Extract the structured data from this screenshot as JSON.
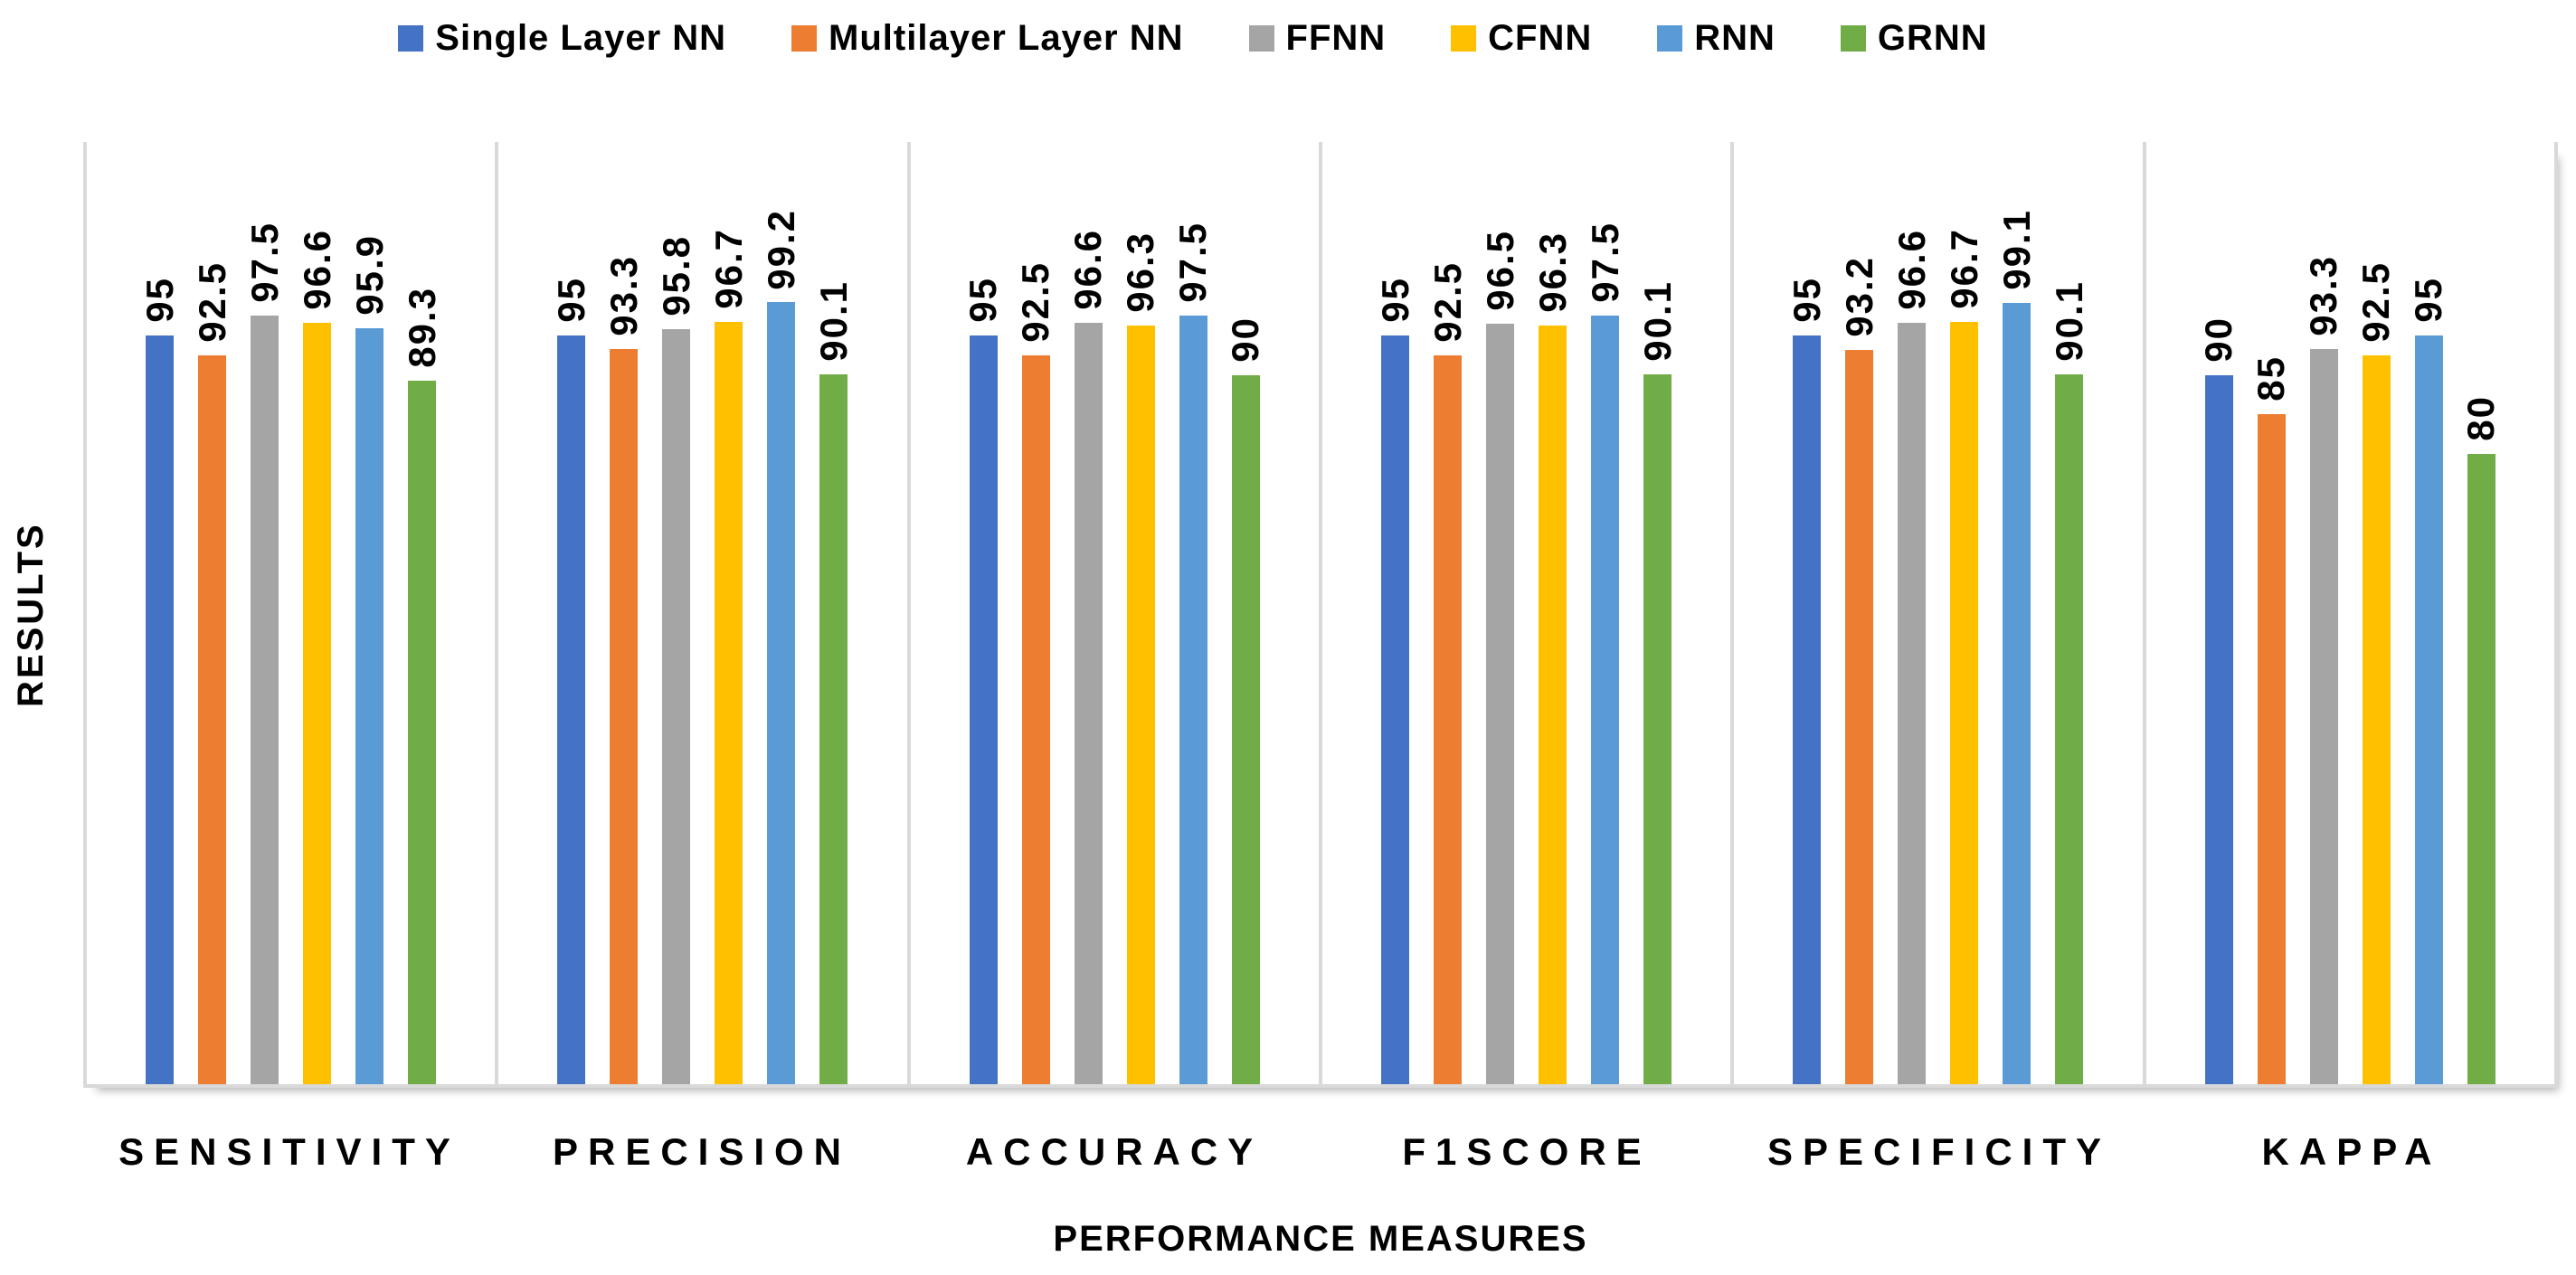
{
  "chart_data": {
    "type": "bar",
    "title": "",
    "xlabel": "PERFORMANCE MEASURES",
    "ylabel": "RESULTS",
    "categories": [
      "SENSITIVITY",
      "PRECISION",
      "ACCURACY",
      "F1SCORE",
      "SPECIFICITY",
      "KAPPA"
    ],
    "series": [
      {
        "name": "Single Layer NN",
        "color": "#4472C4",
        "values": [
          95,
          95,
          95,
          95,
          95,
          90
        ]
      },
      {
        "name": "Multilayer Layer NN",
        "color": "#ED7D31",
        "values": [
          92.5,
          93.3,
          92.5,
          92.5,
          93.2,
          85
        ]
      },
      {
        "name": "FFNN",
        "color": "#A5A5A5",
        "values": [
          97.5,
          95.8,
          96.6,
          96.5,
          96.6,
          93.3
        ]
      },
      {
        "name": "CFNN",
        "color": "#FFC000",
        "values": [
          96.6,
          96.7,
          96.3,
          96.3,
          96.7,
          92.5
        ]
      },
      {
        "name": "RNN",
        "color": "#5B9BD5",
        "values": [
          95.9,
          99.2,
          97.5,
          97.5,
          99.1,
          95
        ]
      },
      {
        "name": "GRNN",
        "color": "#70AD47",
        "values": [
          89.3,
          90.1,
          90,
          90.1,
          90.1,
          80
        ]
      }
    ],
    "ylim": [
      0,
      120
    ],
    "grid": false,
    "axis_line_color": "#d9d9d9",
    "legend_position": "top",
    "value_label_rotation": "90-ccw"
  }
}
